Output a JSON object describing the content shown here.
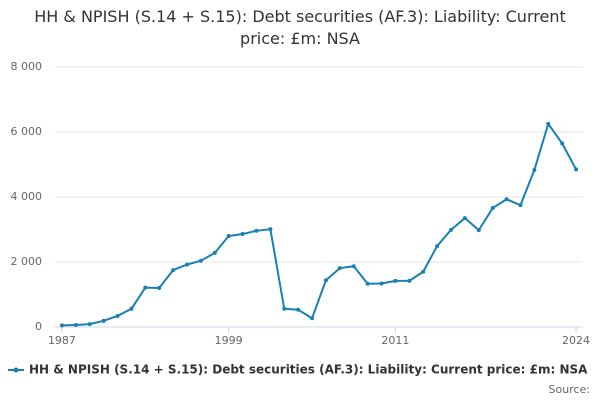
{
  "chart_data": {
    "type": "line",
    "title": "HH & NPISH (S.14 + S.15): Debt securities (AF.3): Liability: Current price: £m: NSA",
    "x": [
      1987,
      1988,
      1989,
      1990,
      1991,
      1992,
      1993,
      1994,
      1995,
      1996,
      1997,
      1998,
      1999,
      2000,
      2001,
      2002,
      2003,
      2004,
      2005,
      2006,
      2007,
      2008,
      2009,
      2010,
      2011,
      2012,
      2013,
      2014,
      2015,
      2016,
      2017,
      2018,
      2019,
      2020,
      2021,
      2022,
      2023,
      2024
    ],
    "series": [
      {
        "name": "HH & NPISH (S.14 + S.15): Debt securities (AF.3): Liability: Current price: £m: NSA",
        "color": "#1a7fb5",
        "values": [
          50,
          60,
          90,
          190,
          340,
          560,
          1210,
          1200,
          1750,
          1920,
          2040,
          2280,
          2800,
          2860,
          2960,
          3010,
          560,
          530,
          270,
          1440,
          1810,
          1870,
          1330,
          1340,
          1420,
          1420,
          1700,
          2490,
          2990,
          3350,
          2980,
          3660,
          3930,
          3750,
          4830,
          6250,
          5650,
          4850
        ]
      }
    ],
    "xlim": [
      1986.5,
      2024.5
    ],
    "xticks": [
      1987,
      1999,
      2011,
      2024
    ],
    "ylim": [
      0,
      8000
    ],
    "yticks": [
      0,
      {
        "value": 2000,
        "label": "2 000"
      },
      {
        "value": 4000,
        "label": "4 000"
      },
      {
        "value": 6000,
        "label": "6 000"
      },
      {
        "value": 8000,
        "label": "8 000"
      }
    ],
    "grid": true,
    "source": "Source:"
  }
}
